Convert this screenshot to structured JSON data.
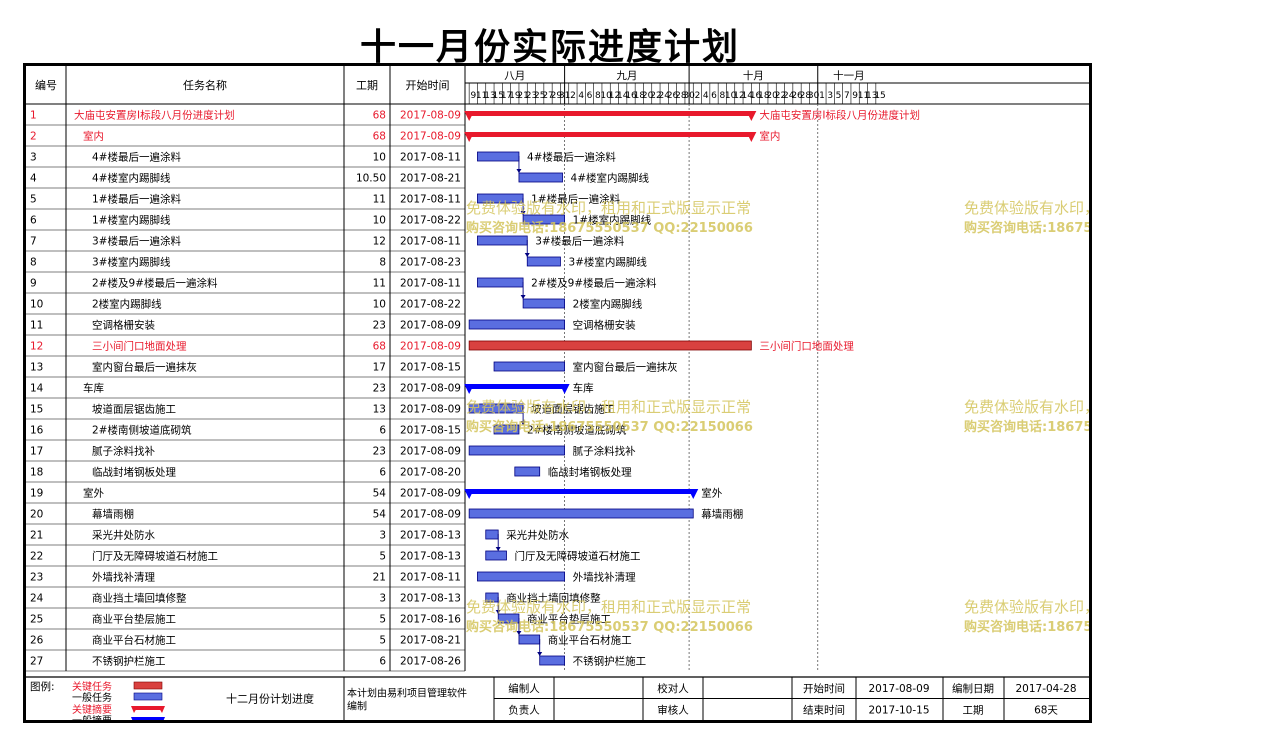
{
  "title": "十一月份实际进度计划",
  "columns": {
    "id": "编号",
    "name": "任务名称",
    "duration": "工期",
    "start": "开始时间"
  },
  "chart_data": {
    "type": "gantt",
    "months": [
      {
        "label": "八月",
        "days": [
          "9",
          "11",
          "13",
          "15",
          "17",
          "19",
          "21",
          "23",
          "25",
          "27",
          "29",
          "31"
        ]
      },
      {
        "label": "九月",
        "days": [
          "2",
          "4",
          "6",
          "8",
          "10",
          "12",
          "14",
          "16",
          "18",
          "20",
          "22",
          "24",
          "26",
          "28",
          "30"
        ]
      },
      {
        "label": "十月",
        "days": [
          "2",
          "4",
          "6",
          "8",
          "10",
          "12",
          "14",
          "16",
          "18",
          "20",
          "22",
          "24",
          "26",
          "28",
          "30"
        ]
      },
      {
        "label": "十一月",
        "days": [
          "1",
          "3",
          "5",
          "7",
          "9",
          "11",
          "13",
          "15"
        ]
      }
    ],
    "tasks": [
      {
        "id": "1",
        "name": "大庙屯安置房Ⅰ标段八月份进度计划",
        "duration": "68",
        "start": "2017-08-09",
        "level": 0,
        "kind": "critical-summary",
        "bar_start": "2017-08-09",
        "bar_days": 68,
        "label": "大庙屯安置房Ⅰ标段八月份进度计划"
      },
      {
        "id": "2",
        "name": "室内",
        "duration": "68",
        "start": "2017-08-09",
        "level": 1,
        "kind": "critical-summary",
        "bar_start": "2017-08-09",
        "bar_days": 68,
        "label": "室内"
      },
      {
        "id": "3",
        "name": "4#楼最后一遍涂料",
        "duration": "10",
        "start": "2017-08-11",
        "level": 2,
        "kind": "normal",
        "bar_start": "2017-08-11",
        "bar_days": 10,
        "label": "4#楼最后一遍涂料"
      },
      {
        "id": "4",
        "name": "4#楼室内踢脚线",
        "duration": "10.50",
        "start": "2017-08-21",
        "level": 2,
        "kind": "normal",
        "bar_start": "2017-08-21",
        "bar_days": 10.5,
        "label": "4#楼室内踢脚线"
      },
      {
        "id": "5",
        "name": "1#楼最后一遍涂料",
        "duration": "11",
        "start": "2017-08-11",
        "level": 2,
        "kind": "normal",
        "bar_start": "2017-08-11",
        "bar_days": 11,
        "label": "1#楼最后一遍涂料"
      },
      {
        "id": "6",
        "name": "1#楼室内踢脚线",
        "duration": "10",
        "start": "2017-08-22",
        "level": 2,
        "kind": "normal",
        "bar_start": "2017-08-22",
        "bar_days": 10,
        "label": "1#楼室内踢脚线"
      },
      {
        "id": "7",
        "name": "3#楼最后一遍涂料",
        "duration": "12",
        "start": "2017-08-11",
        "level": 2,
        "kind": "normal",
        "bar_start": "2017-08-11",
        "bar_days": 12,
        "label": "3#楼最后一遍涂料"
      },
      {
        "id": "8",
        "name": "3#楼室内踢脚线",
        "duration": "8",
        "start": "2017-08-23",
        "level": 2,
        "kind": "normal",
        "bar_start": "2017-08-23",
        "bar_days": 8,
        "label": "3#楼室内踢脚线"
      },
      {
        "id": "9",
        "name": "2#楼及9#楼最后一遍涂料",
        "duration": "11",
        "start": "2017-08-11",
        "level": 2,
        "kind": "normal",
        "bar_start": "2017-08-11",
        "bar_days": 11,
        "label": "2#楼及9#楼最后一遍涂料"
      },
      {
        "id": "10",
        "name": "2楼室内踢脚线",
        "duration": "10",
        "start": "2017-08-22",
        "level": 2,
        "kind": "normal",
        "bar_start": "2017-08-22",
        "bar_days": 10,
        "label": "2楼室内踢脚线"
      },
      {
        "id": "11",
        "name": "空调格栅安装",
        "duration": "23",
        "start": "2017-08-09",
        "level": 2,
        "kind": "normal",
        "bar_start": "2017-08-09",
        "bar_days": 23,
        "label": "空调格栅安装"
      },
      {
        "id": "12",
        "name": "三小间门口地面处理",
        "duration": "68",
        "start": "2017-08-09",
        "level": 2,
        "kind": "critical",
        "bar_start": "2017-08-09",
        "bar_days": 68,
        "label": "三小间门口地面处理"
      },
      {
        "id": "13",
        "name": "室内窗台最后一遍抹灰",
        "duration": "17",
        "start": "2017-08-15",
        "level": 2,
        "kind": "normal",
        "bar_start": "2017-08-15",
        "bar_days": 17,
        "label": "室内窗台最后一遍抹灰"
      },
      {
        "id": "14",
        "name": "车库",
        "duration": "23",
        "start": "2017-08-09",
        "level": 1,
        "kind": "summary",
        "bar_start": "2017-08-09",
        "bar_days": 23,
        "label": "车库"
      },
      {
        "id": "15",
        "name": "坡道面层锯齿施工",
        "duration": "13",
        "start": "2017-08-09",
        "level": 2,
        "kind": "normal",
        "bar_start": "2017-08-09",
        "bar_days": 13,
        "label": "坡道面层锯齿施工"
      },
      {
        "id": "16",
        "name": "2#楼南侧坡道底砌筑",
        "duration": "6",
        "start": "2017-08-15",
        "level": 2,
        "kind": "normal",
        "bar_start": "2017-08-15",
        "bar_days": 6,
        "label": "2#楼南侧坡道底砌筑"
      },
      {
        "id": "17",
        "name": "腻子涂料找补",
        "duration": "23",
        "start": "2017-08-09",
        "level": 2,
        "kind": "normal",
        "bar_start": "2017-08-09",
        "bar_days": 23,
        "label": "腻子涂料找补"
      },
      {
        "id": "18",
        "name": "临战封堵钢板处理",
        "duration": "6",
        "start": "2017-08-20",
        "level": 2,
        "kind": "normal",
        "bar_start": "2017-08-20",
        "bar_days": 6,
        "label": "临战封堵钢板处理"
      },
      {
        "id": "19",
        "name": "室外",
        "duration": "54",
        "start": "2017-08-09",
        "level": 1,
        "kind": "summary",
        "bar_start": "2017-08-09",
        "bar_days": 54,
        "label": "室外"
      },
      {
        "id": "20",
        "name": "幕墙雨棚",
        "duration": "54",
        "start": "2017-08-09",
        "level": 2,
        "kind": "normal",
        "bar_start": "2017-08-09",
        "bar_days": 54,
        "label": "幕墙雨棚"
      },
      {
        "id": "21",
        "name": "采光井处防水",
        "duration": "3",
        "start": "2017-08-13",
        "level": 2,
        "kind": "normal",
        "bar_start": "2017-08-13",
        "bar_days": 3,
        "label": "采光井处防水"
      },
      {
        "id": "22",
        "name": "门厅及无障碍坡道石材施工",
        "duration": "5",
        "start": "2017-08-13",
        "level": 2,
        "kind": "normal",
        "bar_start": "2017-08-13",
        "bar_days": 5,
        "label": "门厅及无障碍坡道石材施工"
      },
      {
        "id": "23",
        "name": "外墙找补清理",
        "duration": "21",
        "start": "2017-08-11",
        "level": 2,
        "kind": "normal",
        "bar_start": "2017-08-11",
        "bar_days": 21,
        "label": "外墙找补清理"
      },
      {
        "id": "24",
        "name": "商业挡土墙回填修整",
        "duration": "3",
        "start": "2017-08-13",
        "level": 2,
        "kind": "normal",
        "bar_start": "2017-08-13",
        "bar_days": 3,
        "label": "商业挡土墙回填修整"
      },
      {
        "id": "25",
        "name": "商业平台垫层施工",
        "duration": "5",
        "start": "2017-08-16",
        "level": 2,
        "kind": "normal",
        "bar_start": "2017-08-16",
        "bar_days": 5,
        "label": "商业平台垫层施工"
      },
      {
        "id": "26",
        "name": "商业平台石材施工",
        "duration": "5",
        "start": "2017-08-21",
        "level": 2,
        "kind": "normal",
        "bar_start": "2017-08-21",
        "bar_days": 5,
        "label": "商业平台石材施工"
      },
      {
        "id": "27",
        "name": "不锈钢护栏施工",
        "duration": "6",
        "start": "2017-08-26",
        "level": 2,
        "kind": "normal",
        "bar_start": "2017-08-26",
        "bar_days": 6,
        "label": "不锈钢护栏施工"
      }
    ],
    "axis_start": "2017-08-08",
    "axis_end": "2017-11-16"
  },
  "legend": {
    "title": "图例:",
    "items": [
      {
        "label": "关键任务",
        "kind": "critical"
      },
      {
        "label": "一般任务",
        "kind": "normal"
      },
      {
        "label": "关键摘要",
        "kind": "critical-summary"
      },
      {
        "label": "一般摘要",
        "kind": "summary"
      }
    ]
  },
  "footer": {
    "plan_title": "十二月份计划进度",
    "software_note_1": "本计划由易利项目管理软件",
    "software_note_2": "编制",
    "compiler_label": "编制人",
    "checker_label": "校对人",
    "owner_label": "负责人",
    "reviewer_label": "审核人",
    "start_label": "开始时间",
    "start_value": "2017-08-09",
    "end_label": "结束时间",
    "end_value": "2017-10-15",
    "date_label": "编制日期",
    "date_value": "2017-04-28",
    "duration_label": "工期",
    "duration_value": "68天"
  },
  "watermark": {
    "line1": "免费体验版有水印，租用和正式版显示正常",
    "line2": "购买咨询电话:18675550537 QQ:22150066"
  },
  "colors": {
    "critical": "#e8192c",
    "summary": "#0000ff",
    "normal_fill": "#5a6ee0",
    "critical_task_fill": "#d9413f",
    "watermark": "#d3c45c"
  }
}
